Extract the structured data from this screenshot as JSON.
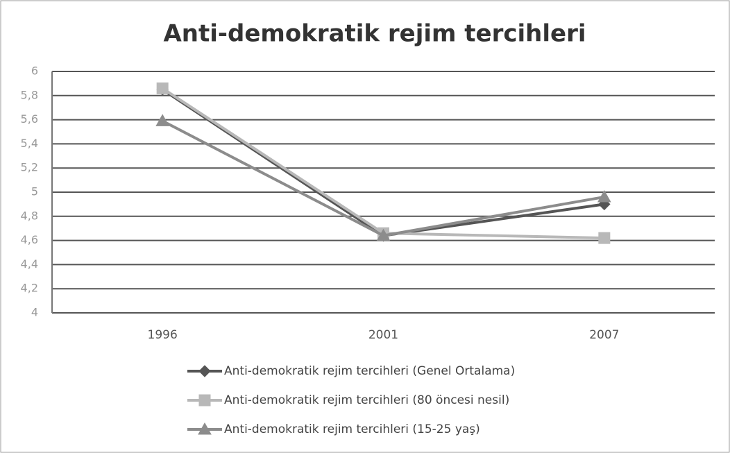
{
  "chart_data": {
    "type": "line",
    "title": "Anti-demokratik rejim tercihleri",
    "categories": [
      "1996",
      "2001",
      "2007"
    ],
    "series": [
      {
        "name": "Anti-demokratik rejim tercihleri (Genel Ortalama)",
        "color": "#555555",
        "marker": "diamond",
        "values": [
          5.85,
          4.64,
          4.9
        ]
      },
      {
        "name": "Anti-demokratik rejim tercihleri (80 öncesi nesil)",
        "color": "#b8b8b8",
        "marker": "square",
        "values": [
          5.86,
          4.66,
          4.62
        ]
      },
      {
        "name": "Anti-demokratik rejim tercihleri (15-25 yaş)",
        "color": "#8c8c8c",
        "marker": "triangle",
        "values": [
          5.59,
          4.64,
          4.96
        ]
      }
    ],
    "ylim": [
      4,
      6
    ],
    "yticks": [
      4,
      {
        "value": 4.2,
        "label": "4,2"
      },
      {
        "value": 4.4,
        "label": "4,4"
      },
      {
        "value": 4.6,
        "label": "4,6"
      },
      {
        "value": 4.8,
        "label": "4,8"
      },
      5,
      {
        "value": 5.2,
        "label": "5,2"
      },
      {
        "value": 5.4,
        "label": "5,4"
      },
      {
        "value": 5.6,
        "label": "5,6"
      },
      {
        "value": 5.8,
        "label": "5,8"
      },
      6
    ],
    "grid": true,
    "legend": "bottom"
  }
}
